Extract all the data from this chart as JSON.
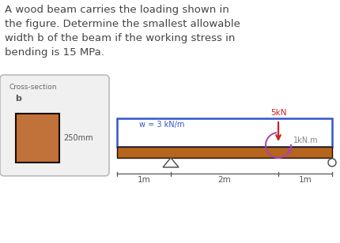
{
  "title_text": "A wood beam carries the loading shown in\nthe figure. Determine the smallest allowable\nwidth b of the beam if the working stress in\nbending is 15 MPa.",
  "title_fontsize": 9.5,
  "title_color": "#444444",
  "bg_color": "#ffffff",
  "beam_color": "#b5651d",
  "beam_border_color": "#1a0a00",
  "load_rect_border": "#3355cc",
  "w_label": "w = 3 kN/m",
  "w_label_color": "#3355cc",
  "force_label": "5kN",
  "force_label_color": "#cc2222",
  "moment_label": "1kN.m",
  "moment_label_color": "#888888",
  "dim_1m_left": "1m",
  "dim_2m": "2m",
  "dim_1m_right": "1m",
  "cross_section_label": "Cross-section",
  "cross_section_b": "b",
  "cross_section_mm": "250mm",
  "cross_section_box_color": "#c1713a",
  "cross_section_border": "#1a0a00",
  "cross_section_panel_color": "#f0f0f0",
  "support_color": "#555555",
  "dim_color": "#555555"
}
